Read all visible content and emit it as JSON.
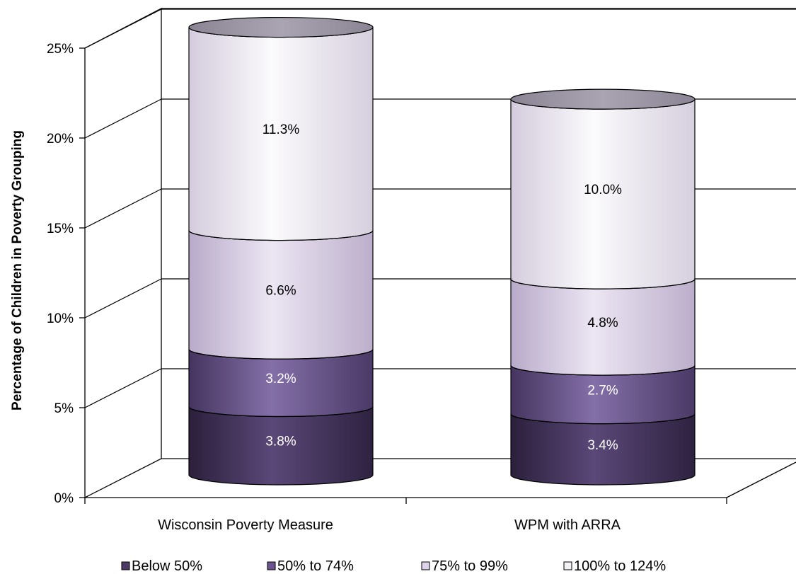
{
  "chart_data": {
    "type": "bar",
    "stacked": true,
    "three_d": true,
    "bar_shape": "cylinder",
    "categories": [
      "Wisconsin Poverty Measure",
      "WPM with ARRA"
    ],
    "series": [
      {
        "name": "Below 50%",
        "values": [
          3.8,
          3.4
        ],
        "labels": [
          "3.8%",
          "3.4%"
        ],
        "color": "#4b3a66"
      },
      {
        "name": "50% to 74%",
        "values": [
          3.2,
          2.7
        ],
        "labels": [
          "3.2%",
          "2.7%"
        ],
        "color": "#6b5590"
      },
      {
        "name": "75% to 99%",
        "values": [
          6.6,
          4.8
        ],
        "labels": [
          "6.6%",
          "4.8%"
        ],
        "color": "#ddd3ea"
      },
      {
        "name": "100% to 124%",
        "values": [
          11.3,
          10.0
        ],
        "labels": [
          "11.3%",
          "10.0%"
        ],
        "color": "#f3f0f6"
      }
    ],
    "ylabel": "Percentage of Children in Poverty Grouping",
    "xlabel": "",
    "ylim": [
      0,
      25
    ],
    "yticks": [
      0,
      5,
      10,
      15,
      20,
      25
    ],
    "ytick_labels": [
      "0%",
      "5%",
      "10%",
      "15%",
      "20%",
      "25%"
    ],
    "grid": true,
    "legend_position": "bottom"
  }
}
